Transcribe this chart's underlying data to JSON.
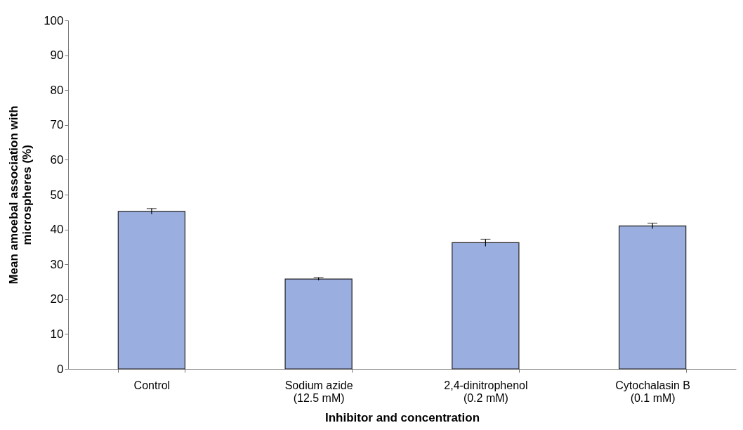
{
  "chart_data": {
    "type": "bar",
    "xlabel": "Inhibitor and concentration",
    "ylabel": "Mean amoebal association with\nmicrospheres (%)",
    "categories": [
      "Control",
      "Sodium azide\n(12.5 mM)",
      "2,4-dinitrophenol\n(0.2 mM)",
      "Cytochalasin B\n(0.1 mM)"
    ],
    "values": [
      45.2,
      25.8,
      36.2,
      41.0
    ],
    "errors": [
      0.8,
      0.4,
      1.0,
      0.8
    ],
    "color": "#9aaee0",
    "ylim": [
      0,
      100
    ],
    "yticks": [
      0,
      10,
      20,
      30,
      40,
      50,
      60,
      70,
      80,
      90,
      100
    ],
    "grid": false
  }
}
